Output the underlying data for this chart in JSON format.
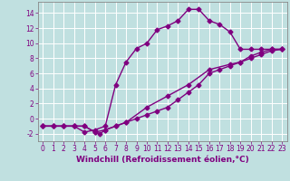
{
  "background_color": "#c0e0e0",
  "grid_color": "#b0d8d8",
  "line_color": "#800080",
  "marker": "D",
  "marker_size": 2.5,
  "line_width": 1.0,
  "xlim": [
    -0.5,
    23.5
  ],
  "ylim": [
    -3,
    15.5
  ],
  "xticks": [
    0,
    1,
    2,
    3,
    4,
    5,
    6,
    7,
    8,
    9,
    10,
    11,
    12,
    13,
    14,
    15,
    16,
    17,
    18,
    19,
    20,
    21,
    22,
    23
  ],
  "yticks": [
    -2,
    0,
    2,
    4,
    6,
    8,
    10,
    12,
    14
  ],
  "xlabel": "Windchill (Refroidissement éolien,°C)",
  "xlabel_fontsize": 6.5,
  "tick_fontsize": 5.5,
  "curve1_x": [
    0,
    1,
    2,
    3,
    4,
    5,
    6,
    7,
    8,
    9,
    10,
    11,
    12,
    13,
    14,
    15,
    16,
    17,
    18,
    19,
    20,
    21,
    22,
    23
  ],
  "curve1_y": [
    -1,
    -1,
    -1,
    -1,
    -1.8,
    -1.5,
    -1,
    4.5,
    7.5,
    9.3,
    10,
    11.8,
    12.3,
    13,
    14.5,
    14.5,
    13,
    12.5,
    11.5,
    9.2,
    9.2,
    9.2,
    9.2,
    9.2
  ],
  "curve2_x": [
    0,
    1,
    2,
    3,
    4,
    5,
    6,
    7,
    8,
    9,
    10,
    11,
    12,
    13,
    14,
    15,
    16,
    17,
    18,
    19,
    20,
    21,
    22,
    23
  ],
  "curve2_y": [
    -1,
    -1,
    -1,
    -1,
    -1,
    -1.8,
    -1.5,
    -1,
    -0.5,
    0,
    0.5,
    1.0,
    1.5,
    2.5,
    3.5,
    4.5,
    6.0,
    6.5,
    7.0,
    7.5,
    8.3,
    8.8,
    9.2,
    9.2
  ],
  "curve3_x": [
    0,
    1,
    2,
    3,
    4,
    5,
    5.5,
    6,
    7,
    8,
    10,
    12,
    14,
    16,
    18,
    19,
    20,
    21,
    22,
    23
  ],
  "curve3_y": [
    -1,
    -1,
    -1,
    -1,
    -1,
    -1.8,
    -2.0,
    -1.5,
    -1.0,
    -0.5,
    1.5,
    3.0,
    4.5,
    6.5,
    7.2,
    7.5,
    8.0,
    8.5,
    9.0,
    9.2
  ]
}
